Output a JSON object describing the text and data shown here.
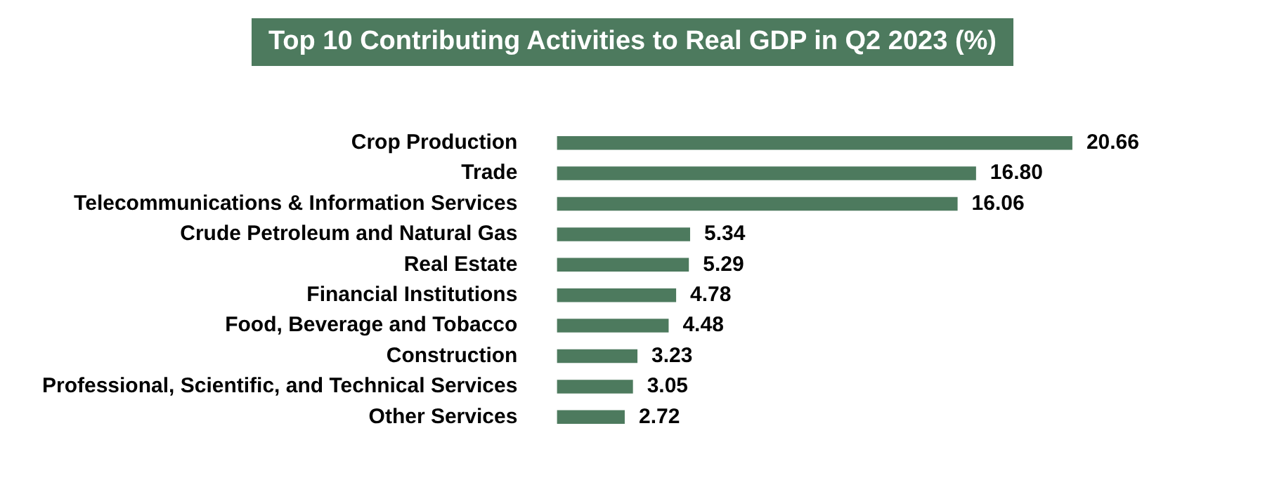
{
  "chart_data": {
    "type": "bar",
    "orientation": "horizontal",
    "title": "Top 10 Contributing Activities to Real GDP in Q2 2023 (%)",
    "categories": [
      "Crop Production",
      "Trade",
      "Telecommunications & Information Services",
      "Crude Petroleum and Natural Gas",
      "Real Estate",
      "Financial Institutions",
      "Food, Beverage and Tobacco",
      "Construction",
      "Professional, Scientific, and Technical Services",
      "Other Services"
    ],
    "values": [
      20.66,
      16.8,
      16.06,
      5.34,
      5.29,
      4.78,
      4.48,
      3.23,
      3.05,
      2.72
    ],
    "value_labels": [
      "20.66",
      "16.80",
      "16.06",
      "5.34",
      "5.29",
      "4.78",
      "4.48",
      "3.23",
      "3.05",
      "2.72"
    ],
    "color": "#4d7a5e",
    "grid": false,
    "legend": false
  }
}
